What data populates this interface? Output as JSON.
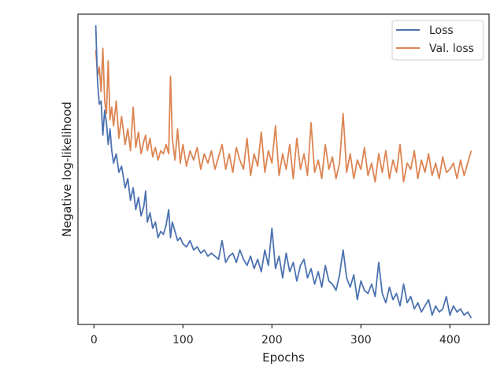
{
  "chart_data": {
    "type": "line",
    "title": "",
    "xlabel": "Epochs",
    "ylabel": "Negative log-likelihood",
    "xlim": [
      -18,
      444
    ],
    "ylim": [
      0.0,
      1.0
    ],
    "xticks": [
      0,
      100,
      200,
      300,
      400
    ],
    "xtick_labels": [
      "0",
      "100",
      "200",
      "300",
      "400"
    ],
    "yticks_shown": false,
    "grid": false,
    "legend_position": "top-right",
    "series": [
      {
        "name": "Loss",
        "color": "#4c72b0",
        "x": [
          2,
          4,
          6,
          8,
          10,
          12,
          14,
          16,
          18,
          20,
          22,
          25,
          28,
          31,
          35,
          38,
          41,
          44,
          47,
          50,
          53,
          56,
          58,
          60,
          63,
          66,
          69,
          72,
          75,
          78,
          81,
          84,
          86,
          88,
          91,
          94,
          97,
          100,
          104,
          108,
          112,
          116,
          120,
          124,
          128,
          132,
          136,
          140,
          144,
          148,
          152,
          156,
          160,
          164,
          168,
          172,
          176,
          180,
          184,
          188,
          192,
          196,
          200,
          204,
          208,
          212,
          216,
          220,
          224,
          228,
          232,
          236,
          240,
          244,
          248,
          252,
          256,
          260,
          264,
          268,
          272,
          276,
          280,
          284,
          288,
          292,
          296,
          300,
          304,
          308,
          312,
          316,
          320,
          324,
          328,
          332,
          336,
          340,
          344,
          348,
          352,
          356,
          360,
          364,
          368,
          372,
          376,
          380,
          384,
          388,
          392,
          396,
          400,
          404,
          408,
          412,
          416,
          420,
          424
        ],
        "values": [
          0.964,
          0.78,
          0.71,
          0.72,
          0.61,
          0.69,
          0.65,
          0.58,
          0.63,
          0.56,
          0.52,
          0.55,
          0.49,
          0.51,
          0.44,
          0.47,
          0.4,
          0.44,
          0.37,
          0.41,
          0.35,
          0.38,
          0.43,
          0.33,
          0.36,
          0.31,
          0.33,
          0.28,
          0.3,
          0.29,
          0.32,
          0.37,
          0.28,
          0.33,
          0.3,
          0.27,
          0.28,
          0.26,
          0.25,
          0.27,
          0.24,
          0.25,
          0.23,
          0.24,
          0.22,
          0.23,
          0.22,
          0.21,
          0.27,
          0.2,
          0.22,
          0.23,
          0.2,
          0.24,
          0.21,
          0.19,
          0.22,
          0.18,
          0.21,
          0.17,
          0.24,
          0.19,
          0.31,
          0.18,
          0.22,
          0.15,
          0.23,
          0.17,
          0.2,
          0.14,
          0.19,
          0.21,
          0.15,
          0.18,
          0.13,
          0.17,
          0.12,
          0.19,
          0.14,
          0.13,
          0.11,
          0.16,
          0.24,
          0.15,
          0.12,
          0.16,
          0.08,
          0.14,
          0.11,
          0.1,
          0.13,
          0.09,
          0.2,
          0.1,
          0.07,
          0.12,
          0.08,
          0.1,
          0.06,
          0.13,
          0.07,
          0.09,
          0.05,
          0.07,
          0.04,
          0.06,
          0.08,
          0.03,
          0.06,
          0.04,
          0.05,
          0.09,
          0.03,
          0.06,
          0.04,
          0.05,
          0.03,
          0.04,
          0.02
        ]
      },
      {
        "name": "Val. loss",
        "color": "#dd8452",
        "x": [
          2,
          4,
          6,
          8,
          10,
          12,
          14,
          16,
          18,
          20,
          22,
          25,
          28,
          31,
          35,
          38,
          41,
          44,
          47,
          50,
          53,
          56,
          58,
          60,
          63,
          66,
          69,
          72,
          75,
          78,
          81,
          84,
          86,
          88,
          91,
          94,
          97,
          100,
          104,
          108,
          112,
          116,
          120,
          124,
          128,
          132,
          136,
          140,
          144,
          148,
          152,
          156,
          160,
          164,
          168,
          172,
          176,
          180,
          184,
          188,
          192,
          196,
          200,
          204,
          208,
          212,
          216,
          220,
          224,
          228,
          232,
          236,
          240,
          244,
          248,
          252,
          256,
          260,
          264,
          268,
          272,
          276,
          280,
          284,
          288,
          292,
          296,
          300,
          304,
          308,
          312,
          316,
          320,
          324,
          328,
          332,
          336,
          340,
          344,
          348,
          352,
          356,
          360,
          364,
          368,
          372,
          376,
          380,
          384,
          388,
          392,
          396,
          400,
          404,
          408,
          412,
          416,
          420,
          424
        ],
        "values": [
          0.885,
          0.8,
          0.83,
          0.75,
          0.89,
          0.72,
          0.68,
          0.85,
          0.66,
          0.7,
          0.64,
          0.72,
          0.6,
          0.67,
          0.58,
          0.63,
          0.56,
          0.7,
          0.57,
          0.62,
          0.55,
          0.59,
          0.61,
          0.56,
          0.6,
          0.54,
          0.57,
          0.53,
          0.56,
          0.55,
          0.58,
          0.55,
          0.8,
          0.6,
          0.53,
          0.63,
          0.52,
          0.58,
          0.51,
          0.56,
          0.53,
          0.57,
          0.5,
          0.55,
          0.52,
          0.56,
          0.5,
          0.54,
          0.58,
          0.5,
          0.55,
          0.49,
          0.57,
          0.53,
          0.5,
          0.6,
          0.48,
          0.55,
          0.51,
          0.62,
          0.49,
          0.56,
          0.52,
          0.64,
          0.48,
          0.55,
          0.5,
          0.58,
          0.47,
          0.6,
          0.5,
          0.55,
          0.48,
          0.65,
          0.49,
          0.53,
          0.47,
          0.58,
          0.5,
          0.54,
          0.47,
          0.52,
          0.68,
          0.49,
          0.55,
          0.47,
          0.53,
          0.5,
          0.57,
          0.48,
          0.52,
          0.46,
          0.55,
          0.49,
          0.56,
          0.47,
          0.53,
          0.49,
          0.58,
          0.46,
          0.52,
          0.5,
          0.56,
          0.47,
          0.53,
          0.49,
          0.55,
          0.48,
          0.52,
          0.47,
          0.54,
          0.49,
          0.5,
          0.52,
          0.47,
          0.53,
          0.48,
          0.52,
          0.56
        ]
      }
    ]
  }
}
